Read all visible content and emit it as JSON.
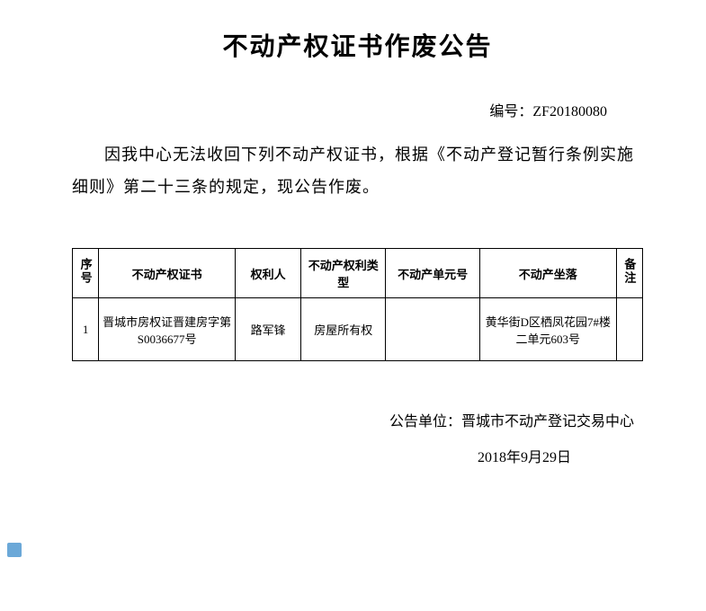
{
  "title": "不动产权证书作废公告",
  "doc_number_label": "编号：",
  "doc_number": "ZF20180080",
  "body_text": "因我中心无法收回下列不动产权证书，根据《不动产登记暂行条例实施细则》第二十三条的规定，现公告作废。",
  "table": {
    "headers": {
      "seq": "序号",
      "cert": "不动产权证书",
      "owner": "权利人",
      "type": "不动产权利类型",
      "unit": "不动产单元号",
      "location": "不动产坐落",
      "note": "备注"
    },
    "rows": [
      {
        "seq": "1",
        "cert": "晋城市房权证晋建房字第S0036677号",
        "owner": "路军锋",
        "type": "房屋所有权",
        "unit": "",
        "location": "黄华街D区栖凤花园7#楼二单元603号",
        "note": ""
      }
    ]
  },
  "footer": {
    "unit_label": "公告单位：",
    "unit": "晋城市不动产登记交易中心",
    "date": "2018年9月29日"
  }
}
